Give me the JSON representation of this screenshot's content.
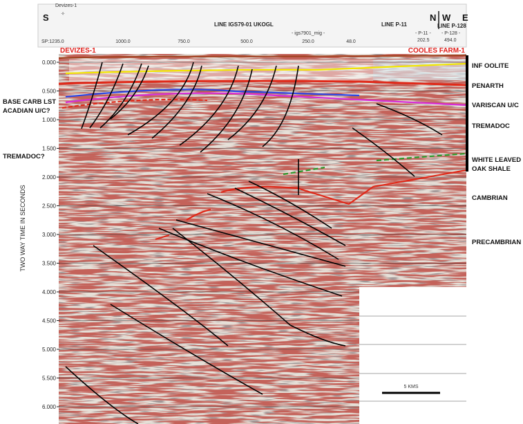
{
  "header": {
    "direction_left": "S",
    "well_marker": "Devizes-1",
    "line_main": "LINE IGS79-01 UKOGL",
    "line_p11": "LINE P-11",
    "north": "N",
    "west": "W",
    "east": "E",
    "line_p128": "LINE P-128",
    "sp_label": "SP:",
    "sp_values": [
      "1235.0",
      "1000.0",
      "750.0",
      "500.0",
      "250.0",
      "48.0"
    ],
    "mig_label": "- igs7901_mig -",
    "p11_label": "- P-11 -",
    "p11_sp": "202.5",
    "p128_label": "- P-128 -",
    "p128_sp": "494.0"
  },
  "wells": {
    "left": "DEVIZES-1",
    "right": "COOLES FARM-1"
  },
  "time_axis": {
    "title": "TWO WAY TIME IN SECONDS",
    "labels": [
      "0.000",
      "0.500",
      "1.000",
      "1.500",
      "2.000",
      "2.500",
      "3.000",
      "3.500",
      "4.000",
      "4.500",
      "5.000",
      "5.500",
      "6.000"
    ]
  },
  "left_labels": [
    "BASE CARB LST",
    "ACADIAN U/C?",
    "TREMADOC?"
  ],
  "right_labels": [
    [
      "INF OOLITE"
    ],
    [
      "PENARTH"
    ],
    [
      "VARISCAN U/C"
    ],
    [
      "TREMADOC"
    ],
    [
      "WHITE LEAVED",
      "OAK SHALE"
    ],
    [
      "CAMBRIAN"
    ],
    [
      "PRECAMBRIAN"
    ]
  ],
  "scale_bar": "5 KMS"
}
